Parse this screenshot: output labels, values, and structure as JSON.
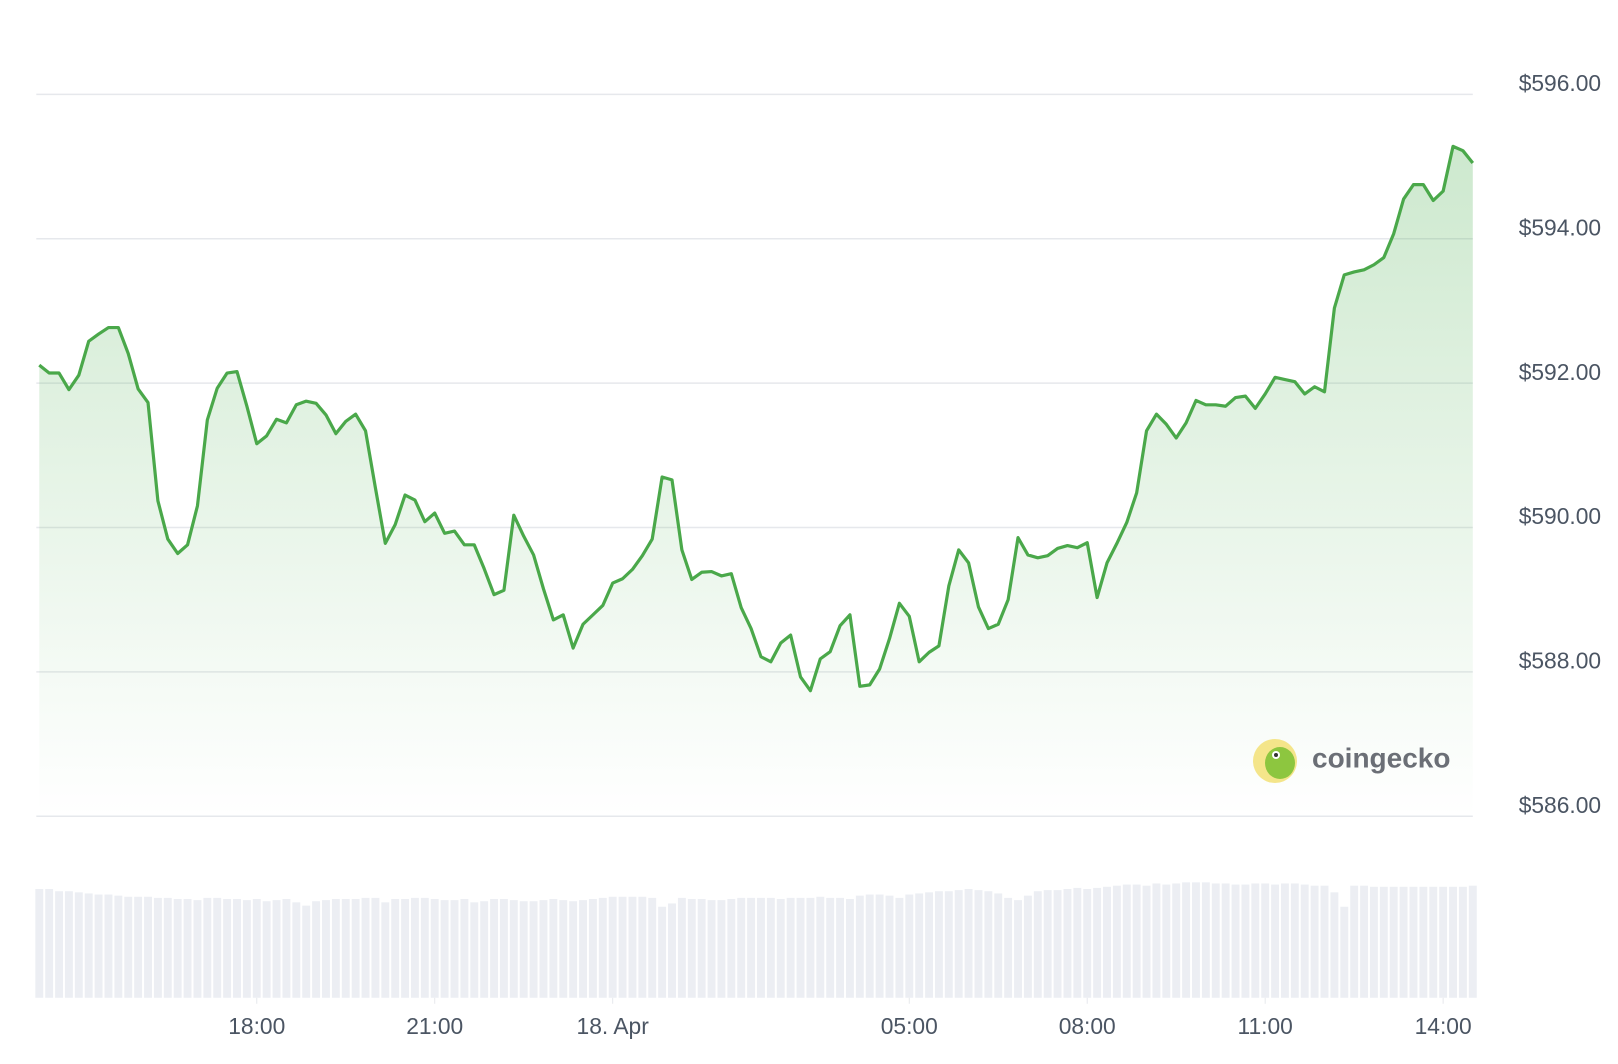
{
  "chart_data": {
    "type": "area",
    "watermark": "coingecko",
    "color": "#4aa84a",
    "volume_color": "#eceef3",
    "grid": true,
    "x": [
      860,
      870,
      880,
      890,
      900,
      910,
      920,
      930,
      940,
      950,
      960,
      970,
      980,
      990,
      1000,
      1010,
      1020,
      1030,
      1040,
      1050,
      1060,
      1070,
      1080,
      1090,
      1100,
      1110,
      1120,
      1130,
      1140,
      1150,
      1160,
      1170,
      1180,
      1190,
      1200,
      1210,
      1220,
      1230,
      1240,
      1250,
      1260,
      1270,
      1280,
      1290,
      1300,
      1310,
      1320,
      1330,
      1340,
      1350,
      1360,
      1370,
      1380,
      1390,
      1400,
      1410,
      1420,
      1430,
      1440,
      1450,
      1460,
      1470,
      1480,
      1490,
      1500,
      1510,
      1520,
      1530,
      1540,
      1550,
      1560,
      1570,
      1580,
      1590,
      1600,
      1610,
      1620,
      1630,
      1640,
      1650,
      1660,
      1670,
      1680,
      1690,
      1700,
      1710,
      1720,
      1730,
      1740,
      1750,
      1760,
      1770,
      1780,
      1790,
      1800,
      1810,
      1820,
      1830,
      1840,
      1850,
      1860,
      1870,
      1880,
      1890,
      1900,
      1910,
      1920,
      1930,
      1940,
      1950,
      1960,
      1970,
      1980,
      1990,
      2000,
      2010,
      2020,
      2030,
      2040,
      2050,
      2060,
      2070,
      2080,
      2090,
      2100,
      2110,
      2120,
      2130,
      2140,
      2150,
      2160,
      2170,
      2180,
      2190,
      2200,
      2210,
      2220,
      2230,
      2240,
      2250,
      2260,
      2270,
      2280,
      2290,
      2300,
      2310
    ],
    "values": [
      592.25,
      592.14,
      592.14,
      591.91,
      592.11,
      592.58,
      592.68,
      592.77,
      592.77,
      592.41,
      591.92,
      591.73,
      590.37,
      589.84,
      589.64,
      589.76,
      590.3,
      591.49,
      591.93,
      592.14,
      592.16,
      591.68,
      591.16,
      591.27,
      591.5,
      591.45,
      591.7,
      591.75,
      591.72,
      591.56,
      591.3,
      591.47,
      591.57,
      591.34,
      590.55,
      589.78,
      590.04,
      590.45,
      590.38,
      590.08,
      590.2,
      589.92,
      589.95,
      589.76,
      589.76,
      589.43,
      589.07,
      589.13,
      590.17,
      589.88,
      589.62,
      589.15,
      588.72,
      588.79,
      588.33,
      588.66,
      588.79,
      588.92,
      589.23,
      589.29,
      589.42,
      589.61,
      589.84,
      590.7,
      590.66,
      589.69,
      589.28,
      589.38,
      589.39,
      589.33,
      589.36,
      588.89,
      588.6,
      588.21,
      588.14,
      588.4,
      588.51,
      587.93,
      587.74,
      588.18,
      588.28,
      588.64,
      588.79,
      587.8,
      587.82,
      588.04,
      588.46,
      588.95,
      588.77,
      588.14,
      588.27,
      588.36,
      589.19,
      589.69,
      589.51,
      588.9,
      588.6,
      588.66,
      589.0,
      589.86,
      589.62,
      589.58,
      589.61,
      589.71,
      589.75,
      589.72,
      589.79,
      589.03,
      589.51,
      589.78,
      590.07,
      590.48,
      591.34,
      591.57,
      591.43,
      591.24,
      591.45,
      591.76,
      591.7,
      591.7,
      591.68,
      591.8,
      591.82,
      591.65,
      591.85,
      592.08,
      592.05,
      592.02,
      591.85,
      591.95,
      591.88,
      593.04,
      593.5,
      593.54,
      593.57,
      593.64,
      593.74,
      594.07,
      594.55,
      594.75,
      594.75,
      594.53,
      594.66,
      595.28,
      595.22,
      595.05
    ],
    "volume": [
      98,
      98,
      96,
      96,
      95,
      94,
      93,
      93,
      92,
      91,
      91,
      91,
      90,
      90,
      89,
      89,
      88,
      90,
      90,
      89,
      89,
      88,
      89,
      87,
      88,
      89,
      86,
      83,
      87,
      88,
      89,
      89,
      89,
      90,
      90,
      86,
      89,
      89,
      90,
      90,
      89,
      88,
      88,
      89,
      86,
      87,
      89,
      89,
      88,
      87,
      87,
      88,
      89,
      88,
      87,
      88,
      89,
      90,
      91,
      91,
      91,
      91,
      90,
      82,
      85,
      90,
      89,
      89,
      88,
      88,
      89,
      90,
      90,
      90,
      90,
      89,
      90,
      90,
      90,
      91,
      90,
      90,
      89,
      92,
      93,
      93,
      92,
      90,
      93,
      94,
      95,
      96,
      96,
      97,
      98,
      97,
      96,
      94,
      90,
      88,
      92,
      96,
      97,
      97,
      98,
      99,
      98,
      99,
      100,
      101,
      102,
      102,
      101,
      103,
      102,
      103,
      104,
      104,
      104,
      103,
      103,
      102,
      102,
      103,
      103,
      102,
      103,
      103,
      102,
      101,
      101,
      95,
      82,
      101,
      101,
      100,
      100,
      100,
      100,
      100,
      100,
      100,
      100,
      100,
      100,
      101
    ],
    "xlim": [
      857,
      2310
    ],
    "xticks": [
      {
        "value": 1080,
        "label": "18:00"
      },
      {
        "value": 1260,
        "label": "21:00"
      },
      {
        "value": 1440,
        "label": "18. Apr"
      },
      {
        "value": 1740,
        "label": "05:00"
      },
      {
        "value": 1920,
        "label": "08:00"
      },
      {
        "value": 2100,
        "label": "11:00"
      },
      {
        "value": 2280,
        "label": "14:00"
      }
    ],
    "ylim": [
      586,
      596
    ],
    "yticks": [
      {
        "value": 586,
        "label": "$586.00"
      },
      {
        "value": 588,
        "label": "$588.00"
      },
      {
        "value": 590,
        "label": "$590.00"
      },
      {
        "value": 592,
        "label": "$592.00"
      },
      {
        "value": 594,
        "label": "$594.00"
      },
      {
        "value": 596,
        "label": "$596.00"
      }
    ],
    "y2lim": [
      0,
      100
    ]
  }
}
